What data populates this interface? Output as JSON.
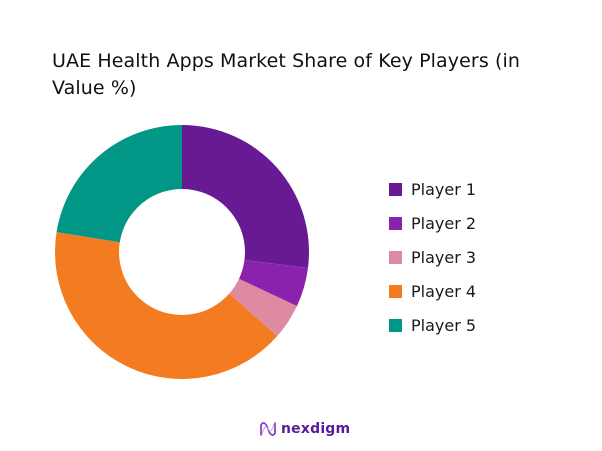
{
  "chart_data": {
    "type": "pie",
    "subtype": "donut",
    "title": "UAE Health Apps Market Share of Key Players (in Value %)",
    "categories": [
      "Player 1",
      "Player 2",
      "Player 3",
      "Player 4",
      "Player 5"
    ],
    "values": [
      27,
      5,
      4.5,
      41,
      22.5
    ],
    "colors": [
      "#671A94",
      "#8B22AE",
      "#DE8AA0",
      "#F47C20",
      "#029687"
    ],
    "start_angle_deg": 0,
    "direction": "clockwise",
    "legend_position": "right",
    "inner_radius_ratio": 0.5
  },
  "title": "UAE Health Apps Market Share of Key Players (in Value %)",
  "legend": [
    {
      "label": "Player 1",
      "color": "#671A94"
    },
    {
      "label": "Player 2",
      "color": "#8B22AE"
    },
    {
      "label": "Player 3",
      "color": "#DE8AA0"
    },
    {
      "label": "Player 4",
      "color": "#F47C20"
    },
    {
      "label": "Player 5",
      "color": "#029687"
    }
  ],
  "brand": {
    "name": "nexdigm",
    "icon": "nexdigm-wave-logo-icon"
  }
}
